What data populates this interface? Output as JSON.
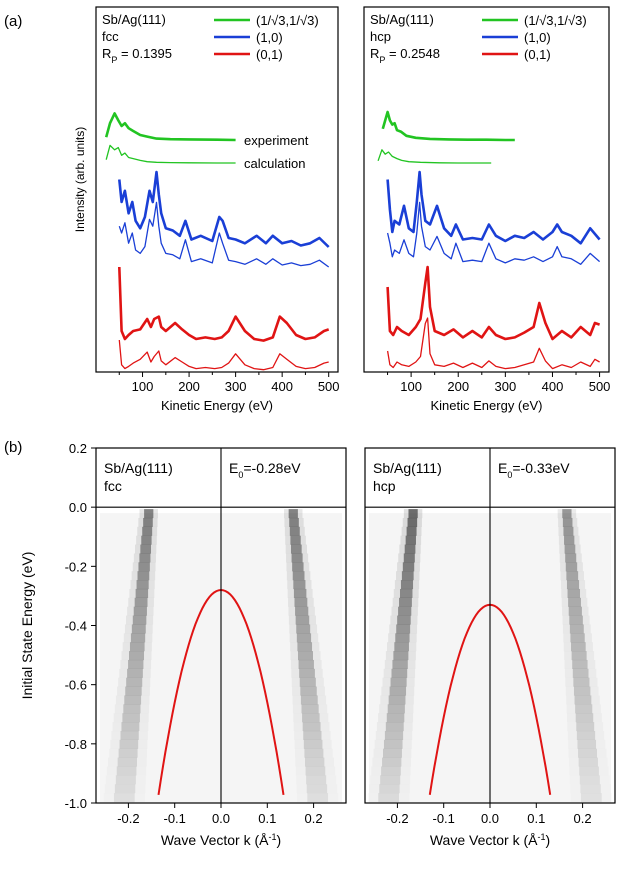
{
  "panel_labels": {
    "a": "(a)",
    "b": "(b)"
  },
  "colors": {
    "green": "#22c422",
    "blue": "#1a3fd6",
    "red": "#e01414",
    "axis": "#000000"
  },
  "chart_data": [
    {
      "id": "a-fcc",
      "type": "line",
      "title_lines": [
        "Sb/Ag(111)",
        "fcc"
      ],
      "rp_label": "R",
      "rp_sub": "P",
      "rp_value": " = 0.1395",
      "xlabel": "Kinetic Energy (eV)",
      "ylabel": "Intensity (arb. units)",
      "xlim": [
        0,
        520
      ],
      "xticks": [
        100,
        200,
        300,
        400,
        500
      ],
      "legend": [
        "(1/√3,1/√3)",
        "(1,0)",
        "(0,1)"
      ],
      "annotations": [
        "experiment",
        "calculation"
      ],
      "series": [
        {
          "name": "(1/√3,1/√3)",
          "kind": "experiment",
          "x": [
            22,
            30,
            40,
            48,
            55,
            62,
            70,
            80,
            95,
            110,
            130,
            160,
            200,
            260,
            300
          ],
          "y": [
            0.1,
            0.6,
            0.95,
            0.7,
            0.5,
            0.6,
            0.42,
            0.32,
            0.18,
            0.12,
            0.05,
            0.03,
            0.02,
            0.01,
            0.0
          ]
        },
        {
          "name": "(1/√3,1/√3)",
          "kind": "calculation",
          "x": [
            22,
            30,
            40,
            48,
            55,
            62,
            70,
            80,
            95,
            110,
            130,
            160,
            200,
            260,
            300
          ],
          "y": [
            0.15,
            0.8,
            0.6,
            0.7,
            0.35,
            0.45,
            0.25,
            0.2,
            0.12,
            0.06,
            0.03,
            0.02,
            0.01,
            0.0,
            0.0
          ]
        },
        {
          "name": "(1,0)",
          "kind": "experiment",
          "x": [
            50,
            55,
            62,
            70,
            78,
            85,
            95,
            105,
            115,
            122,
            130,
            135,
            140,
            150,
            165,
            180,
            192,
            205,
            225,
            250,
            265,
            272,
            285,
            300,
            320,
            345,
            365,
            380,
            400,
            420,
            440,
            460,
            480,
            500
          ],
          "y": [
            0.9,
            0.6,
            0.75,
            0.45,
            0.6,
            0.35,
            0.25,
            0.4,
            0.75,
            0.6,
            1.0,
            0.7,
            0.45,
            0.25,
            0.22,
            0.15,
            0.35,
            0.1,
            0.15,
            0.08,
            0.4,
            0.35,
            0.12,
            0.1,
            0.05,
            0.15,
            0.05,
            0.15,
            0.05,
            0.08,
            0.02,
            0.05,
            0.12,
            0.0
          ]
        },
        {
          "name": "(1,0)",
          "kind": "calculation",
          "x": [
            50,
            55,
            62,
            70,
            78,
            85,
            95,
            105,
            115,
            122,
            130,
            135,
            140,
            150,
            165,
            180,
            192,
            205,
            225,
            250,
            265,
            272,
            285,
            300,
            320,
            345,
            365,
            380,
            400,
            420,
            440,
            460,
            480,
            500
          ],
          "y": [
            0.6,
            0.5,
            0.65,
            0.35,
            0.5,
            0.25,
            0.2,
            0.3,
            0.7,
            0.6,
            0.95,
            0.6,
            0.35,
            0.2,
            0.18,
            0.12,
            0.4,
            0.08,
            0.12,
            0.06,
            0.5,
            0.35,
            0.1,
            0.08,
            0.04,
            0.12,
            0.04,
            0.12,
            0.03,
            0.06,
            0.02,
            0.04,
            0.1,
            0.0
          ]
        },
        {
          "name": "(0,1)",
          "kind": "experiment",
          "x": [
            50,
            55,
            62,
            70,
            80,
            95,
            110,
            118,
            125,
            135,
            140,
            150,
            170,
            185,
            200,
            215,
            235,
            255,
            270,
            285,
            300,
            320,
            340,
            360,
            380,
            395,
            410,
            430,
            450,
            470,
            490,
            500
          ],
          "y": [
            1.0,
            0.2,
            0.1,
            0.15,
            0.2,
            0.22,
            0.35,
            0.25,
            0.35,
            0.38,
            0.25,
            0.2,
            0.3,
            0.22,
            0.15,
            0.1,
            0.12,
            0.1,
            0.12,
            0.2,
            0.38,
            0.2,
            0.1,
            0.08,
            0.12,
            0.38,
            0.3,
            0.15,
            0.1,
            0.12,
            0.2,
            0.22
          ]
        },
        {
          "name": "(0,1)",
          "kind": "calculation",
          "x": [
            50,
            55,
            62,
            70,
            80,
            95,
            110,
            118,
            125,
            135,
            140,
            150,
            170,
            185,
            200,
            215,
            235,
            255,
            270,
            285,
            300,
            320,
            340,
            360,
            380,
            395,
            410,
            430,
            450,
            470,
            490,
            500
          ],
          "y": [
            0.6,
            0.15,
            0.08,
            0.12,
            0.18,
            0.25,
            0.38,
            0.2,
            0.3,
            0.4,
            0.22,
            0.15,
            0.28,
            0.2,
            0.12,
            0.08,
            0.1,
            0.08,
            0.1,
            0.18,
            0.35,
            0.15,
            0.08,
            0.06,
            0.1,
            0.35,
            0.25,
            0.12,
            0.08,
            0.1,
            0.18,
            0.2
          ]
        }
      ]
    },
    {
      "id": "a-hcp",
      "type": "line",
      "title_lines": [
        "Sb/Ag(111)",
        "hcp"
      ],
      "rp_label": "R",
      "rp_sub": "P",
      "rp_value": " = 0.2548",
      "xlabel": "Kinetic Energy (eV)",
      "xlim": [
        0,
        520
      ],
      "xticks": [
        100,
        200,
        300,
        400,
        500
      ],
      "legend": [
        "(1/√3,1/√3)",
        "(1,0)",
        "(0,1)"
      ],
      "series": [
        {
          "name": "(1/√3,1/√3)",
          "kind": "experiment",
          "x": [
            40,
            45,
            50,
            55,
            60,
            65,
            70,
            78,
            90,
            110,
            140,
            180,
            220,
            260,
            300,
            320
          ],
          "y": [
            0.4,
            0.7,
            1.0,
            0.7,
            0.55,
            0.6,
            0.35,
            0.3,
            0.15,
            0.08,
            0.04,
            0.02,
            0.01,
            0.01,
            0.0,
            0.0
          ]
        },
        {
          "name": "(1/√3,1/√3)",
          "kind": "calculation",
          "x": [
            30,
            38,
            45,
            52,
            60,
            70,
            80,
            95,
            120,
            160,
            200,
            240,
            270
          ],
          "y": [
            0.1,
            0.6,
            0.4,
            0.5,
            0.3,
            0.2,
            0.12,
            0.06,
            0.03,
            0.01,
            0.0,
            0.0,
            0.0
          ]
        },
        {
          "name": "(1,0)",
          "kind": "experiment",
          "x": [
            50,
            55,
            60,
            65,
            75,
            85,
            95,
            105,
            112,
            118,
            122,
            130,
            140,
            155,
            170,
            185,
            195,
            210,
            230,
            250,
            265,
            280,
            300,
            320,
            340,
            360,
            380,
            400,
            410,
            420,
            440,
            460,
            480,
            500
          ],
          "y": [
            0.9,
            0.5,
            0.2,
            0.35,
            0.3,
            0.55,
            0.25,
            0.2,
            0.6,
            1.0,
            0.7,
            0.35,
            0.3,
            0.55,
            0.25,
            0.15,
            0.3,
            0.1,
            0.12,
            0.1,
            0.3,
            0.15,
            0.08,
            0.15,
            0.12,
            0.2,
            0.1,
            0.2,
            0.3,
            0.2,
            0.15,
            0.05,
            0.25,
            0.1
          ]
        },
        {
          "name": "(1,0)",
          "kind": "calculation",
          "x": [
            50,
            55,
            60,
            65,
            75,
            85,
            95,
            105,
            112,
            118,
            122,
            130,
            140,
            155,
            170,
            185,
            195,
            210,
            230,
            250,
            265,
            280,
            300,
            320,
            340,
            360,
            380,
            400,
            410,
            420,
            440,
            460,
            480,
            500
          ],
          "y": [
            0.5,
            0.35,
            0.15,
            0.25,
            0.2,
            0.4,
            0.2,
            0.15,
            0.5,
            0.95,
            0.6,
            0.3,
            0.25,
            0.45,
            0.2,
            0.12,
            0.35,
            0.08,
            0.1,
            0.08,
            0.35,
            0.12,
            0.06,
            0.12,
            0.1,
            0.15,
            0.08,
            0.15,
            0.3,
            0.15,
            0.12,
            0.04,
            0.2,
            0.08
          ]
        },
        {
          "name": "(0,1)",
          "kind": "experiment",
          "x": [
            50,
            55,
            62,
            70,
            80,
            95,
            110,
            120,
            130,
            135,
            140,
            150,
            170,
            190,
            210,
            230,
            250,
            265,
            280,
            300,
            320,
            340,
            360,
            372,
            385,
            400,
            420,
            440,
            460,
            480,
            490,
            500
          ],
          "y": [
            0.75,
            0.2,
            0.15,
            0.25,
            0.2,
            0.15,
            0.25,
            0.35,
            0.8,
            1.0,
            0.5,
            0.2,
            0.15,
            0.22,
            0.12,
            0.2,
            0.12,
            0.25,
            0.15,
            0.1,
            0.12,
            0.18,
            0.25,
            0.55,
            0.3,
            0.1,
            0.2,
            0.12,
            0.25,
            0.15,
            0.3,
            0.28
          ]
        },
        {
          "name": "(0,1)",
          "kind": "calculation",
          "x": [
            50,
            55,
            62,
            70,
            80,
            95,
            110,
            120,
            130,
            135,
            140,
            150,
            170,
            190,
            210,
            230,
            250,
            265,
            280,
            300,
            320,
            340,
            360,
            372,
            385,
            400,
            420,
            440,
            460,
            480,
            490,
            500
          ],
          "y": [
            0.4,
            0.15,
            0.1,
            0.2,
            0.15,
            0.12,
            0.2,
            0.3,
            0.9,
            1.0,
            0.35,
            0.15,
            0.12,
            0.18,
            0.1,
            0.18,
            0.1,
            0.22,
            0.12,
            0.08,
            0.1,
            0.15,
            0.2,
            0.45,
            0.22,
            0.08,
            0.15,
            0.1,
            0.2,
            0.12,
            0.25,
            0.2
          ]
        }
      ]
    },
    {
      "id": "b-fcc",
      "type": "heatmap",
      "title_lines": [
        "Sb/Ag(111)",
        "fcc"
      ],
      "e0_label": "E",
      "e0_sub": "0",
      "e0_value": "=-0.28eV",
      "xlabel_main": "Wave Vector k (Å",
      "xlabel_sup": "-1",
      "xlabel_end": ")",
      "ylabel": "Initial State Energy (eV)",
      "xlim": [
        -0.27,
        0.27
      ],
      "ylim": [
        -1.0,
        0.2
      ],
      "xtick_values": [
        -0.2,
        -0.1,
        0.0,
        0.1,
        0.2
      ],
      "xtick_labels": [
        "-0.2",
        "-0.1",
        "0.0",
        "0.1",
        "0.2"
      ],
      "ytick_values": [
        0.2,
        0.0,
        -0.2,
        -0.4,
        -0.6,
        -0.8,
        -1.0
      ],
      "ytick_labels": [
        "0.2",
        "0.0",
        "-0.2",
        "-0.4",
        "-0.6",
        "-0.8",
        "-1.0"
      ],
      "bands": [
        {
          "k_at_EF": -0.155,
          "slope": 0.1,
          "strength": 0.8
        },
        {
          "k_at_EF": 0.155,
          "slope": -0.1,
          "strength": 0.8
        }
      ],
      "parabola": {
        "E0": -0.28,
        "curvature": 38
      }
    },
    {
      "id": "b-hcp",
      "type": "heatmap",
      "title_lines": [
        "Sb/Ag(111)",
        "hcp"
      ],
      "e0_label": "E",
      "e0_sub": "0",
      "e0_value": "=-0.33eV",
      "xlabel_main": "Wave Vector k (Å",
      "xlabel_sup": "-1",
      "xlabel_end": ")",
      "xlim": [
        -0.27,
        0.27
      ],
      "ylim": [
        -1.0,
        0.2
      ],
      "xtick_values": [
        -0.2,
        -0.1,
        0.0,
        0.1,
        0.2
      ],
      "xtick_labels": [
        "-0.2",
        "-0.1",
        "0.0",
        "0.1",
        "0.2"
      ],
      "bands": [
        {
          "k_at_EF": -0.165,
          "slope": 0.1,
          "strength": 0.95
        },
        {
          "k_at_EF": 0.165,
          "slope": -0.1,
          "strength": 0.65
        }
      ],
      "parabola": {
        "E0": -0.33,
        "curvature": 38
      }
    }
  ]
}
